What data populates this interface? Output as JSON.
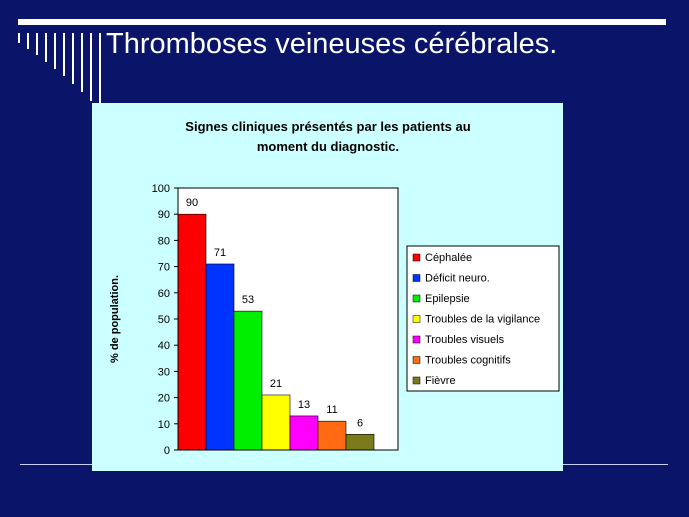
{
  "slide": {
    "title": "Thromboses veineuses cérébrales."
  },
  "colors": {
    "background": "#0a1469",
    "panel": "#ccffff",
    "rule": "#ffffff"
  },
  "chart_data": {
    "type": "bar",
    "title": "Signes cliniques présentés par les patients au moment du diagnostic.",
    "title_lines": [
      "Signes cliniques présentés par les patients au",
      "moment du diagnostic."
    ],
    "xlabel": "",
    "ylabel": "% de population.",
    "ylim": [
      0,
      100
    ],
    "yticks": [
      0,
      10,
      20,
      30,
      40,
      50,
      60,
      70,
      80,
      90,
      100
    ],
    "grid": false,
    "legend_position": "right",
    "categories": [
      "Céphalée",
      "Déficit neuro.",
      "Epilepsie",
      "Troubles de la vigilance",
      "Troubles visuels",
      "Troubles cognitifs",
      "Fièvre"
    ],
    "values": [
      90,
      71,
      53,
      21,
      13,
      11,
      6
    ],
    "colors": [
      "#ff0000",
      "#0033ff",
      "#00ee00",
      "#ffff00",
      "#ff00ff",
      "#ff6a13",
      "#7b7b1c"
    ]
  }
}
